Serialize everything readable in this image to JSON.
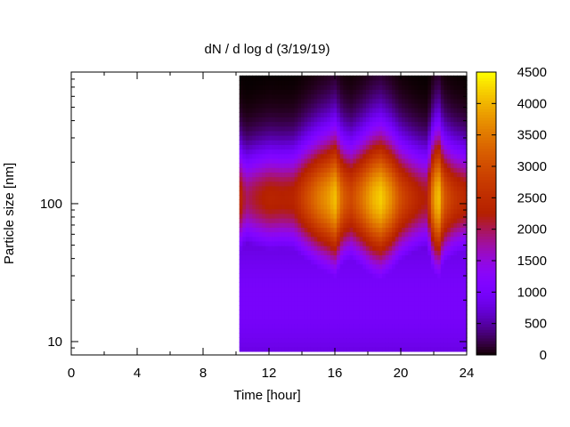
{
  "chart_data": {
    "type": "heatmap",
    "title": "dN / d log d (3/19/19)",
    "xlabel": "Time [hour]",
    "ylabel": "Particle size [nm]",
    "xlim": [
      0,
      24
    ],
    "ylim": [
      8,
      900
    ],
    "y_scale": "log",
    "x_ticks": [
      0,
      4,
      8,
      12,
      16,
      20,
      24
    ],
    "x_tick_labels": [
      "0",
      "4",
      "8",
      "12",
      "16",
      "20",
      "24"
    ],
    "y_ticks": [
      10,
      100
    ],
    "y_tick_labels": [
      "10",
      "100"
    ],
    "colorbar": {
      "min": 0,
      "max": 4500,
      "ticks": [
        0,
        500,
        1000,
        1500,
        2000,
        2500,
        3000,
        3500,
        4000,
        4500
      ],
      "tick_labels": [
        "0",
        "500",
        "1000",
        "1500",
        "2000",
        "2500",
        "3000",
        "3500",
        "4000",
        "4500"
      ],
      "colormap": "gnuplot black-purple-red-orange-yellow"
    },
    "data_extent": {
      "time_start": 10.2,
      "time_end": 24,
      "size_min": 8.5,
      "size_max": 850
    },
    "peak_size_nm": 110,
    "time_profile": [
      [
        10.2,
        2500
      ],
      [
        10.6,
        1950
      ],
      [
        11.2,
        2150
      ],
      [
        12.0,
        2350
      ],
      [
        12.8,
        2300
      ],
      [
        13.5,
        2350
      ],
      [
        14.3,
        3000
      ],
      [
        15.0,
        3500
      ],
      [
        15.6,
        3800
      ],
      [
        16.0,
        4100
      ],
      [
        16.5,
        3200
      ],
      [
        17.0,
        2950
      ],
      [
        17.6,
        3400
      ],
      [
        18.3,
        4000
      ],
      [
        18.8,
        4200
      ],
      [
        19.4,
        3700
      ],
      [
        20.0,
        3000
      ],
      [
        20.6,
        2600
      ],
      [
        21.2,
        2300
      ],
      [
        21.6,
        2200
      ],
      [
        22.0,
        3800
      ],
      [
        22.3,
        4150
      ],
      [
        22.6,
        3200
      ],
      [
        23.2,
        2700
      ],
      [
        24.0,
        2400
      ]
    ],
    "grid": false,
    "legend": "colorbar-right"
  }
}
